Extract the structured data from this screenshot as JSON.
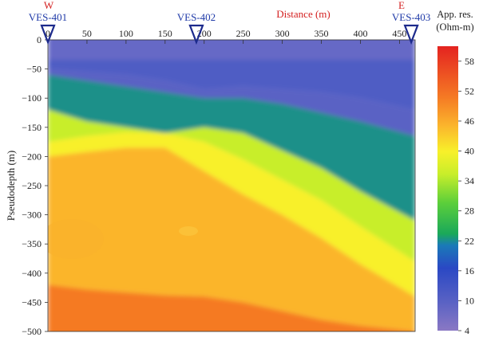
{
  "chart_data": {
    "type": "heatmap",
    "xlabel": "Distance (m)",
    "ylabel": "Pseudodepth (m)",
    "xlim": [
      0,
      470
    ],
    "ylim": [
      -500,
      0
    ],
    "x_ticks": [
      0,
      50,
      100,
      150,
      200,
      250,
      300,
      350,
      400,
      450
    ],
    "y_ticks": [
      0,
      -50,
      -100,
      -150,
      -200,
      -250,
      -300,
      -350,
      -400,
      -450,
      -500
    ],
    "direction_labels": {
      "west": "W",
      "east": "E"
    },
    "stations": [
      {
        "name": "VES-401",
        "x": 0
      },
      {
        "name": "VES-402",
        "x": 190
      },
      {
        "name": "VES-403",
        "x": 465
      }
    ],
    "colorbar": {
      "title_line1": "App. res.",
      "title_line2": "(Ohm-m)",
      "min": 4,
      "max": 61,
      "ticks": [
        58,
        52,
        46,
        40,
        34,
        28,
        22,
        16,
        10,
        4
      ]
    },
    "boundaries": {
      "x": [
        0,
        50,
        100,
        150,
        200,
        250,
        300,
        350,
        400,
        470
      ],
      "layers": [
        {
          "value": 10,
          "depth": [
            -50,
            -55,
            -60,
            -70,
            -85,
            -80,
            -85,
            -90,
            -100,
            -120
          ]
        },
        {
          "value": 22,
          "depth": [
            -60,
            -70,
            -80,
            -90,
            -100,
            -100,
            -110,
            -125,
            -140,
            -165
          ]
        },
        {
          "value": 34,
          "depth": [
            -120,
            -140,
            -150,
            -160,
            -150,
            -160,
            -190,
            -220,
            -260,
            -310
          ]
        },
        {
          "value": 40,
          "depth": [
            -175,
            -165,
            -158,
            -160,
            -175,
            -205,
            -240,
            -275,
            -320,
            -380
          ]
        },
        {
          "value": 46,
          "depth": [
            -200,
            -192,
            -185,
            -185,
            -225,
            -265,
            -300,
            -340,
            -385,
            -440
          ]
        },
        {
          "value": 52,
          "depth": [
            -420,
            -428,
            -433,
            -438,
            -440,
            -450,
            -465,
            -480,
            -490,
            -500
          ]
        }
      ]
    }
  }
}
